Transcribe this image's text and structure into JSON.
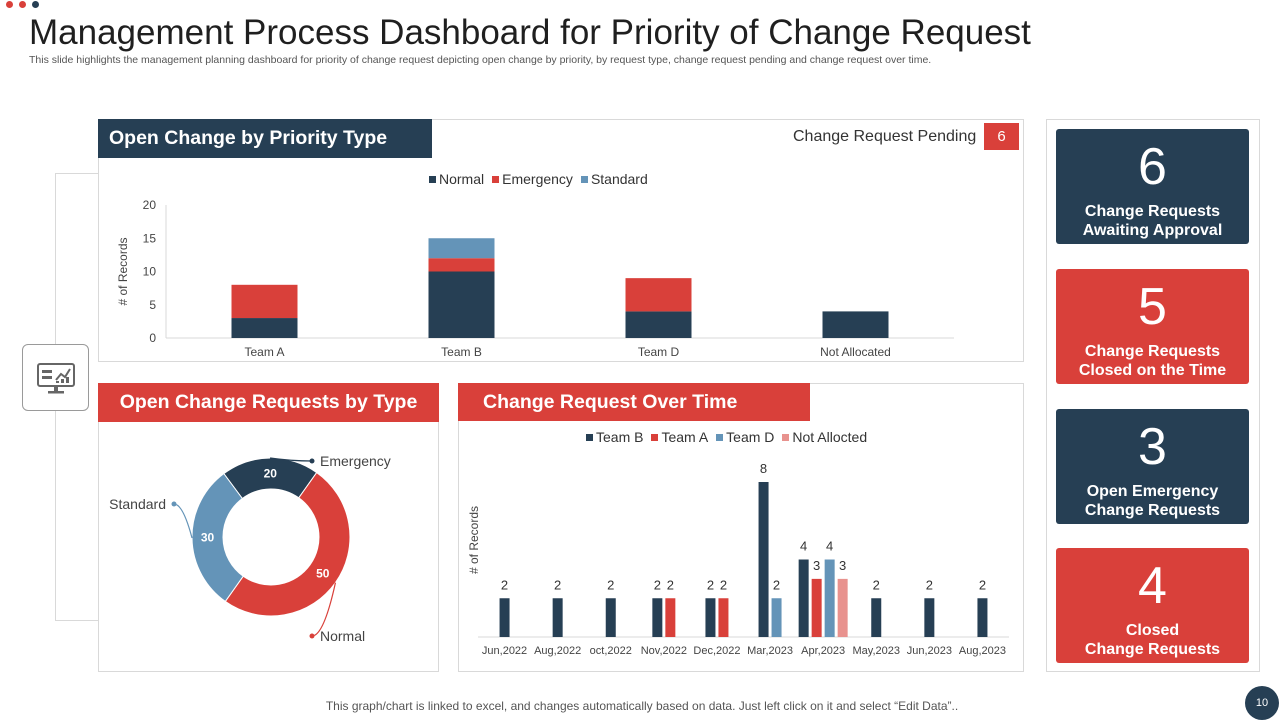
{
  "colors": {
    "dark": "#263f54",
    "red": "#d9403a",
    "blue": "#6494b8",
    "pink": "#e8928e"
  },
  "title": "Management Process Dashboard for Priority of Change Request",
  "subtitle": "This slide highlights the management planning dashboard for priority of change request depicting open change by priority,  by request type, change request pending and change request over time.",
  "pending": {
    "label": "Change Request Pending",
    "value": "6"
  },
  "panels": {
    "priority": {
      "title": "Open Change by Priority Type"
    },
    "type": {
      "title": "Open Change Requests by Type"
    },
    "time": {
      "title": "Change Request Over Time"
    }
  },
  "kpis": [
    {
      "value": "6",
      "line1": "Change Requests",
      "line2": "Awaiting Approval"
    },
    {
      "value": "5",
      "line1": "Change Requests",
      "line2": "Closed on the Time"
    },
    {
      "value": "3",
      "line1": "Open Emergency",
      "line2": "Change Requests"
    },
    {
      "value": "4",
      "line1": "Closed",
      "line2": "Change Requests"
    }
  ],
  "footer": "This graph/chart is linked to excel,  and changes automatically based on data. Just left click on it and select “Edit Data”..",
  "page_number": "10",
  "chart_data": [
    {
      "type": "bar",
      "stacked": true,
      "title": "Open Change by Priority Type",
      "categories": [
        "Team A",
        "Team B",
        "Team D",
        "Not Allocated"
      ],
      "series": [
        {
          "name": "Normal",
          "color": "#263f54",
          "values": [
            3,
            10,
            4,
            4
          ]
        },
        {
          "name": "Emergency",
          "color": "#d9403a",
          "values": [
            5,
            2,
            5,
            0
          ]
        },
        {
          "name": "Standard",
          "color": "#6494b8",
          "values": [
            0,
            3,
            0,
            0
          ]
        }
      ],
      "ylabel": "# of Records",
      "yticks": [
        0,
        5,
        10,
        15,
        20
      ],
      "ylim": [
        0,
        20
      ],
      "legend": "top"
    },
    {
      "type": "pie",
      "donut": true,
      "title": "Open Change Requests by Type",
      "labels": [
        "Emergency",
        "Normal",
        "Standard"
      ],
      "values": [
        20,
        50,
        30
      ],
      "colors": [
        "#263f54",
        "#d9403a",
        "#6494b8"
      ]
    },
    {
      "type": "bar",
      "title": "Change Request Over Time",
      "categories": [
        "Jun,2022",
        "Aug,2022",
        "oct,2022",
        "Nov,2022",
        "Dec,2022",
        "Mar,2023",
        "Apr,2023",
        "May,2023",
        "Jun,2023",
        "Aug,2023"
      ],
      "series": [
        {
          "name": "Team B",
          "color": "#263f54",
          "values": [
            2,
            2,
            2,
            2,
            2,
            8,
            4,
            2,
            2,
            2
          ]
        },
        {
          "name": "Team A",
          "color": "#d9403a",
          "values": [
            null,
            null,
            null,
            2,
            2,
            null,
            3,
            null,
            null,
            null
          ]
        },
        {
          "name": "Team D",
          "color": "#6494b8",
          "values": [
            null,
            null,
            null,
            null,
            null,
            2,
            4,
            null,
            null,
            null
          ]
        },
        {
          "name": "Not Allocted",
          "color": "#e8928e",
          "values": [
            null,
            null,
            null,
            null,
            null,
            null,
            3,
            null,
            null,
            null
          ]
        }
      ],
      "ylabel": "# of Records",
      "ylim": [
        0,
        8
      ],
      "legend": "top"
    }
  ]
}
